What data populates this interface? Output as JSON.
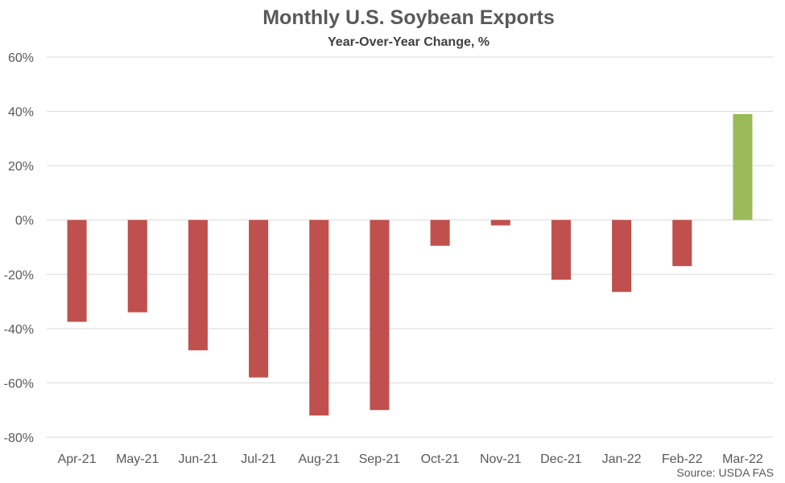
{
  "chart_data": {
    "type": "bar",
    "title": "Monthly U.S. Soybean Exports",
    "subtitle": "Year-Over-Year Change, %",
    "source": "Source: USDA FAS",
    "categories": [
      "Apr-21",
      "May-21",
      "Jun-21",
      "Jul-21",
      "Aug-21",
      "Sep-21",
      "Oct-21",
      "Nov-21",
      "Dec-21",
      "Jan-22",
      "Feb-22",
      "Mar-22"
    ],
    "values": [
      -37.5,
      -34,
      -48,
      -58,
      -72,
      -70,
      -9.5,
      -2,
      -22,
      -26.5,
      -17,
      39
    ],
    "yticks": [
      "-80%",
      "-60%",
      "-40%",
      "-20%",
      "0%",
      "20%",
      "40%",
      "60%"
    ],
    "ylim": [
      -80,
      60
    ],
    "ytick_step": 20,
    "grid": true,
    "legend": "none",
    "colors": {
      "negative": "#C0504D",
      "positive": "#9BBB59",
      "grid": "#D9D9D9"
    }
  }
}
